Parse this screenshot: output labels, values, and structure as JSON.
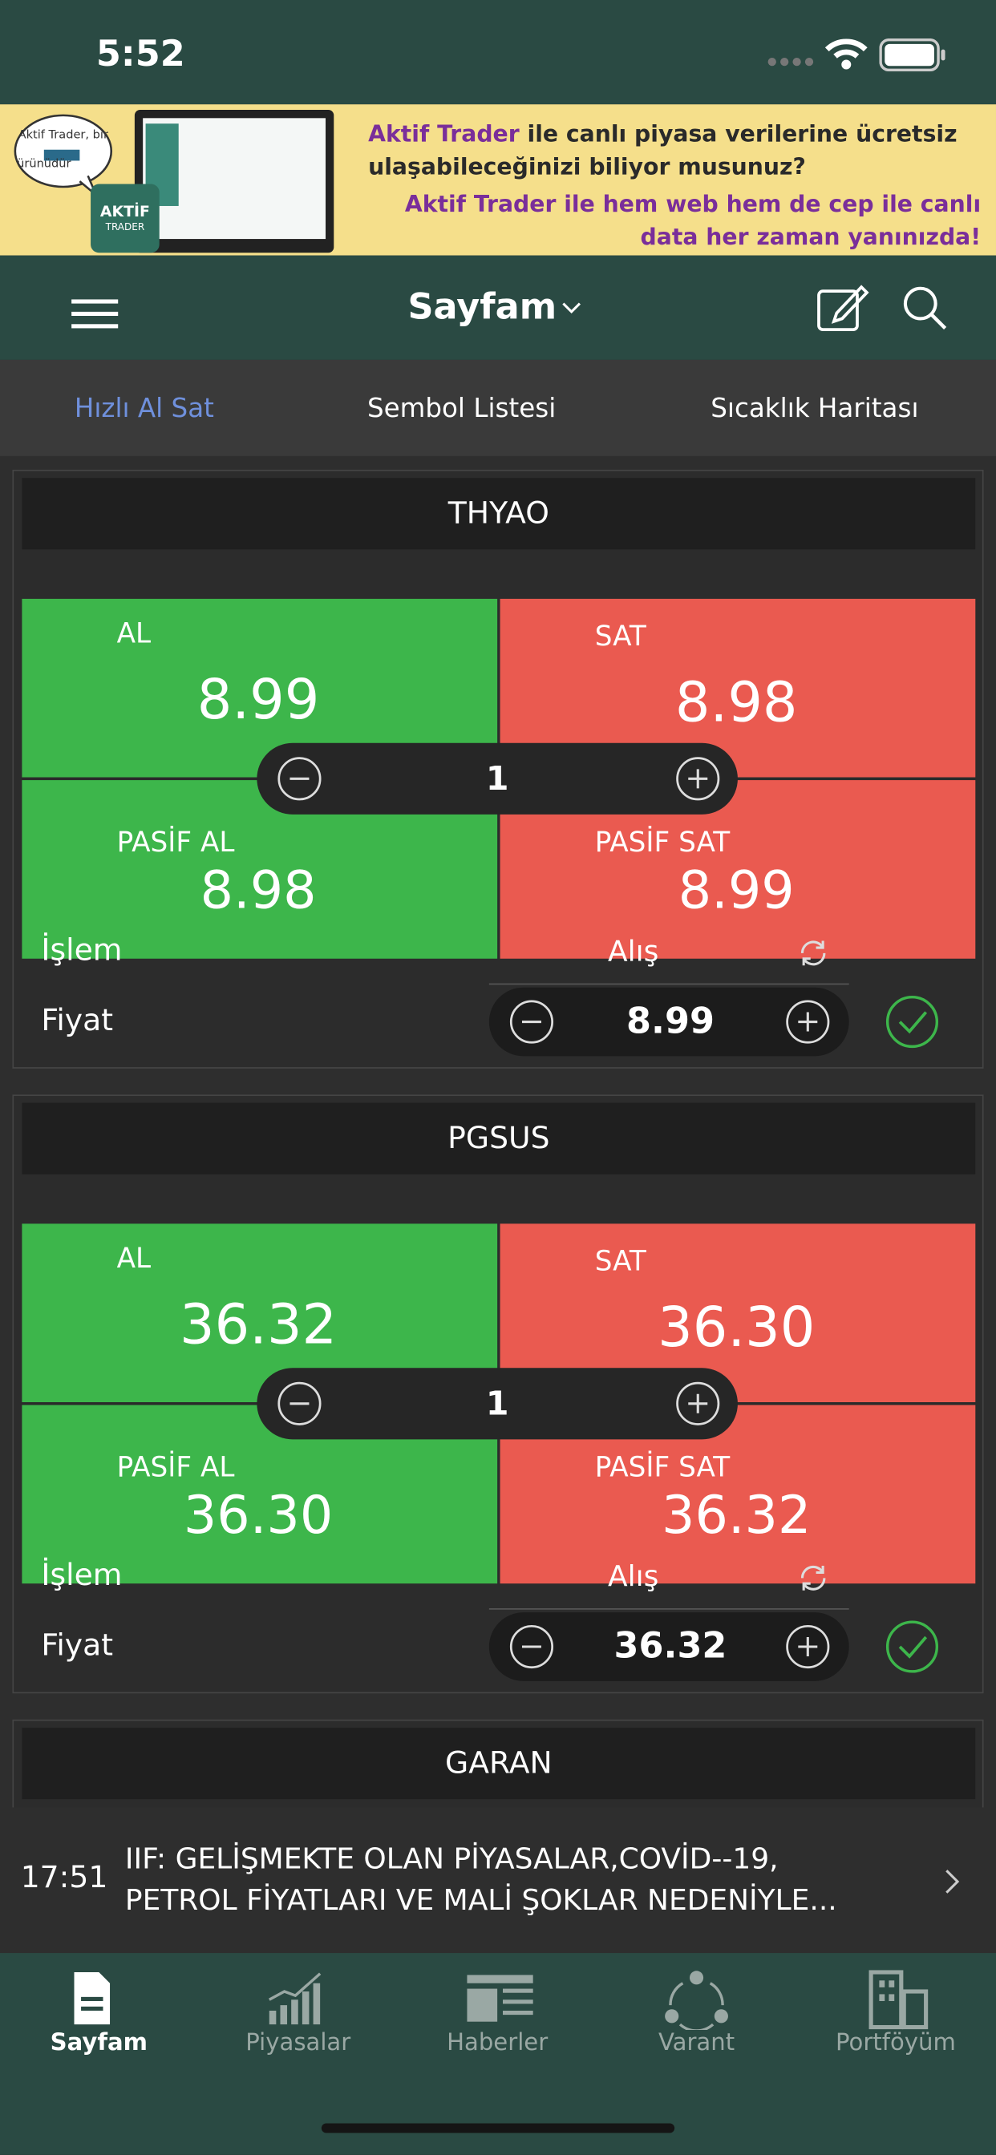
{
  "status_bar": {
    "time": "5:52"
  },
  "banner": {
    "bubble": [
      "Aktif Trader, bir",
      "ürünüdür"
    ],
    "logo": [
      "AKTİF",
      "TRADER"
    ],
    "line1_brand": "Aktif Trader",
    "line1_rest": " ile canlı piyasa verilerine ücretsiz ulaşabileceğinizi biliyor musunuz?",
    "line2": "Aktif Trader ile hem web hem de cep ile canlı data her zaman yanınızda!"
  },
  "nav": {
    "title": "Sayfam"
  },
  "tabs": [
    "Hızlı Al Sat",
    "Sembol Listesi",
    "Sıcaklık Haritası"
  ],
  "cards": [
    {
      "symbol": "THYAO",
      "buy_label": "AL",
      "buy": "8.99",
      "sell_label": "SAT",
      "sell": "8.98",
      "passive_buy_label": "PASİF AL",
      "passive_buy": "8.98",
      "passive_sell_label": "PASİF SAT",
      "passive_sell": "8.99",
      "quantity": "1",
      "action_label": "İşlem",
      "side": "Alış",
      "price_label": "Fiyat",
      "price": "8.99"
    },
    {
      "symbol": "PGSUS",
      "buy_label": "AL",
      "buy": "36.32",
      "sell_label": "SAT",
      "sell": "36.30",
      "passive_buy_label": "PASİF AL",
      "passive_buy": "36.30",
      "passive_sell_label": "PASİF SAT",
      "passive_sell": "36.32",
      "quantity": "1",
      "action_label": "İşlem",
      "side": "Alış",
      "price_label": "Fiyat",
      "price": "36.32"
    }
  ],
  "partial_card": {
    "symbol": "GARAN"
  },
  "news": {
    "time": "17:51",
    "headline": [
      "IIF: GELİŞMEKTE OLAN PİYASALAR,COVİD--19,",
      "PETROL FİYATLARI VE MALİ ŞOKLAR NEDENİYLE..."
    ]
  },
  "bottom_tabs": [
    "Sayfam",
    "Piyasalar",
    "Haberler",
    "Varant",
    "Portföyüm"
  ]
}
